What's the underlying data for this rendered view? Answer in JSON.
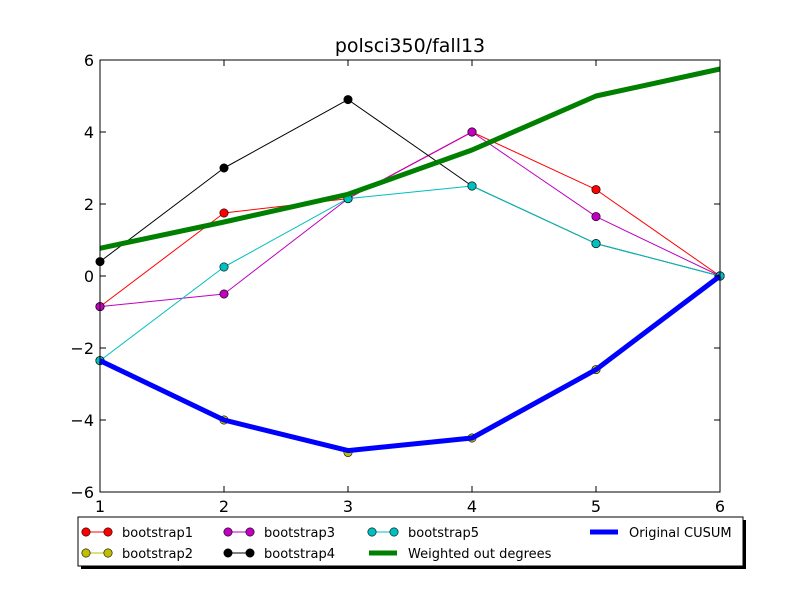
{
  "chart_data": {
    "type": "line",
    "title": "polsci350/fall13",
    "xlabel": "",
    "ylabel": "",
    "xlim": [
      1,
      6
    ],
    "ylim": [
      -6,
      6
    ],
    "x": [
      1,
      2,
      3,
      4,
      5,
      6
    ],
    "xticks": [
      "1",
      "2",
      "3",
      "4",
      "5",
      "6"
    ],
    "yticks": [
      "−6",
      "−4",
      "−2",
      "0",
      "2",
      "4",
      "6"
    ],
    "grid": false,
    "legend_position": "bottom",
    "series": [
      {
        "name": "bootstrap1",
        "values": [
          -0.85,
          1.75,
          2.15,
          4.0,
          2.4,
          0.0
        ],
        "color": "#ff0000",
        "marker": "circle",
        "width": 1
      },
      {
        "name": "bootstrap2",
        "values": [
          -2.35,
          -4.0,
          -4.9,
          -4.5,
          -2.6,
          0.0
        ],
        "color": "#bfbf00",
        "marker": "circle",
        "width": 1
      },
      {
        "name": "bootstrap3",
        "values": [
          -0.85,
          -0.5,
          2.15,
          4.0,
          1.65,
          0.0
        ],
        "color": "#bf00bf",
        "marker": "circle",
        "width": 1
      },
      {
        "name": "bootstrap4",
        "values": [
          0.4,
          3.0,
          4.9,
          2.5,
          0.9,
          0.0
        ],
        "color": "#000000",
        "marker": "circle",
        "width": 1
      },
      {
        "name": "bootstrap5",
        "values": [
          -2.35,
          0.25,
          2.15,
          2.5,
          0.9,
          0.0
        ],
        "color": "#00bfbf",
        "marker": "circle",
        "width": 1
      },
      {
        "name": "Weighted out degrees",
        "values": [
          0.77,
          1.5,
          2.27,
          3.5,
          5.0,
          5.75
        ],
        "color": "#008000",
        "marker": "none",
        "width": 5
      },
      {
        "name": "Original CUSUM",
        "values": [
          -2.35,
          -4.0,
          -4.85,
          -4.5,
          -2.6,
          0.0
        ],
        "color": "#0000ff",
        "marker": "none",
        "width": 5
      }
    ]
  }
}
